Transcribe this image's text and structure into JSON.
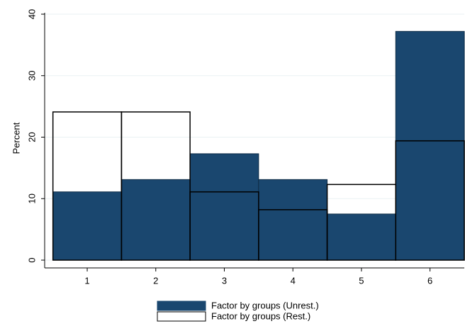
{
  "chart_data": {
    "type": "bar",
    "y_label": "Percent",
    "x": [
      1,
      2,
      3,
      4,
      5,
      6
    ],
    "bar_width": 1,
    "xlim": [
      0.4,
      6.5
    ],
    "xticks": [
      1,
      2,
      3,
      4,
      5,
      6
    ],
    "ylim": [
      0,
      40
    ],
    "yticks": [
      0,
      10,
      20,
      30,
      40
    ],
    "grid": true,
    "legend": "bottom",
    "series": [
      {
        "name": "Factor by groups (Unrest.)",
        "color": "#1a476f",
        "style": "filled",
        "values": [
          11.1,
          13.1,
          17.3,
          13.1,
          7.5,
          37.2
        ]
      },
      {
        "name": "Factor by groups (Rest.)",
        "color": "#000000",
        "style": "outline",
        "values": [
          24.1,
          24.1,
          11.1,
          8.2,
          12.3,
          19.4
        ]
      }
    ]
  }
}
